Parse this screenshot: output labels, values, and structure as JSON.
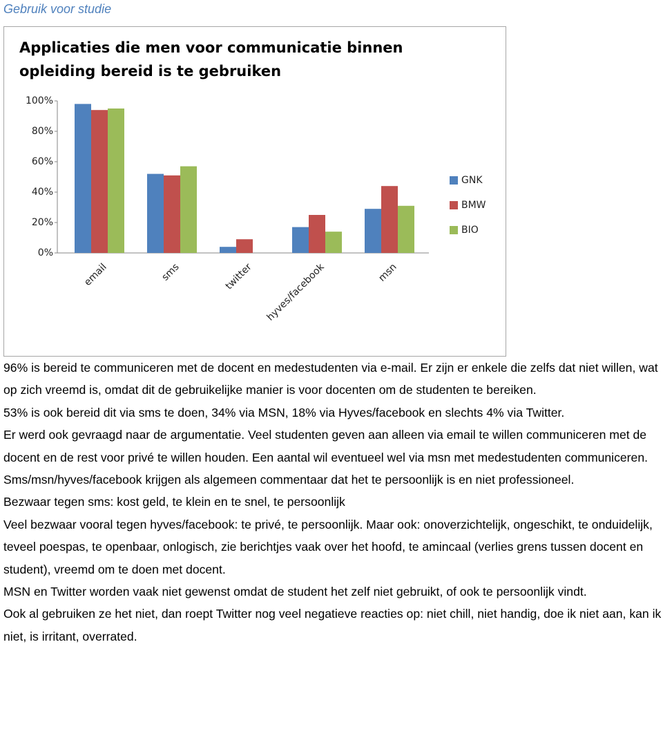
{
  "heading": "Gebruik voor studie",
  "chart_data": {
    "type": "bar",
    "title": [
      "Applicaties die men voor communicatie binnen",
      "opleiding bereid is te gebruiken"
    ],
    "categories": [
      "email",
      "sms",
      "twitter",
      "hyves/facebook",
      "msn"
    ],
    "series": [
      {
        "name": "GNK",
        "color": "#4f81bd",
        "values": [
          98,
          52,
          4,
          17,
          29
        ]
      },
      {
        "name": "BMW",
        "color": "#c0504d",
        "values": [
          94,
          51,
          9,
          25,
          44
        ]
      },
      {
        "name": "BIO",
        "color": "#9bbb59",
        "values": [
          95,
          57,
          0,
          14,
          31
        ]
      }
    ],
    "ylim": [
      0,
      100
    ],
    "yticks": [
      {
        "value": 0,
        "label": "0%"
      },
      {
        "value": 20,
        "label": "20%"
      },
      {
        "value": 40,
        "label": "40%"
      },
      {
        "value": 60,
        "label": "60%"
      },
      {
        "value": 80,
        "label": "80%"
      },
      {
        "value": 100,
        "label": "100%"
      }
    ],
    "grid": false,
    "legend": "right"
  },
  "paragraphs": [
    "96% is bereid te communiceren met de docent en medestudenten via e-mail. Er zijn er enkele die zelfs dat niet willen, wat op zich vreemd is, omdat dit de gebruikelijke manier is voor docenten om de studenten te bereiken.",
    "53% is ook bereid dit via sms te doen,  34% via MSN, 18% via Hyves/facebook en slechts 4% via Twitter.",
    "Er werd ook gevraagd naar de argumentatie. Veel studenten geven aan alleen via email te willen communiceren met de docent en de rest voor privé te willen houden. Een aantal wil eventueel wel via msn met medestudenten communiceren. Sms/msn/hyves/facebook krijgen als algemeen commentaar dat het te persoonlijk is en niet professioneel.",
    "Bezwaar tegen sms: kost geld, te klein en te snel, te persoonlijk",
    "Veel bezwaar vooral tegen hyves/facebook: te privé, te persoonlijk. Maar ook:  onoverzichtelijk, ongeschikt, te onduidelijk, teveel poespas, te openbaar, onlogisch, zie berichtjes vaak over het hoofd, te amincaal (verlies grens tussen docent en student), vreemd om te doen met docent.",
    "MSN en Twitter worden vaak niet gewenst omdat de student het zelf niet gebruikt, of ook te persoonlijk vindt.",
    "Ook al gebruiken ze het niet, dan roept Twitter nog veel negatieve reacties op: niet chill, niet handig, doe ik niet aan, kan ik niet, is irritant, overrated."
  ]
}
